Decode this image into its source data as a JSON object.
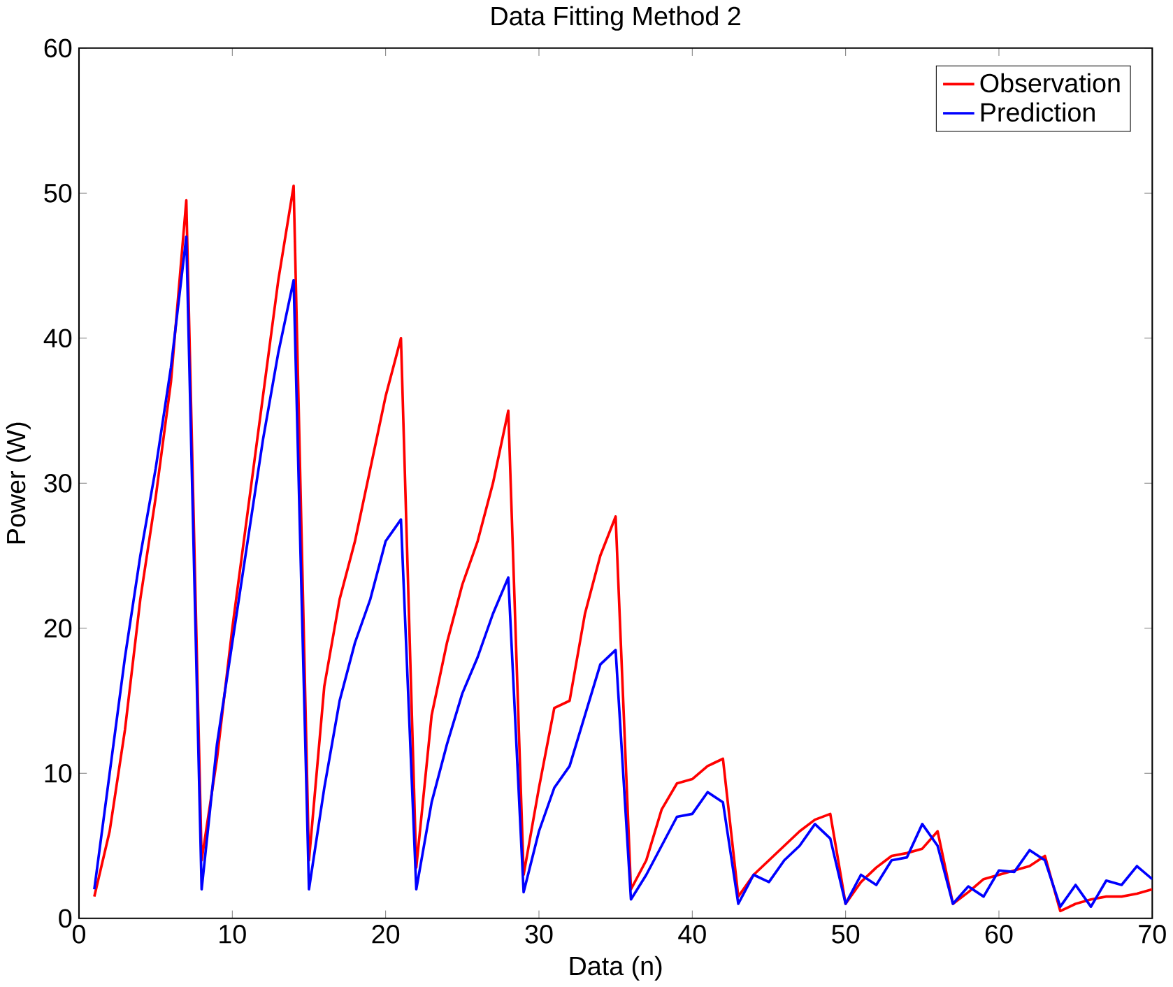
{
  "chart_data": {
    "type": "line",
    "title": "Data Fitting Method 2",
    "xlabel": "Data (n)",
    "ylabel": "Power (W)",
    "x": [
      1,
      2,
      3,
      4,
      5,
      6,
      7,
      8,
      9,
      10,
      11,
      12,
      13,
      14,
      15,
      16,
      17,
      18,
      19,
      20,
      21,
      22,
      23,
      24,
      25,
      26,
      27,
      28,
      29,
      30,
      31,
      32,
      33,
      34,
      35,
      36,
      37,
      38,
      39,
      40,
      41,
      42,
      43,
      44,
      45,
      46,
      47,
      48,
      49,
      50,
      51,
      52,
      53,
      54,
      55,
      56,
      57,
      58,
      59,
      60,
      61,
      62,
      63,
      64,
      65,
      66,
      67,
      68,
      69,
      70
    ],
    "series": [
      {
        "name": "Observation",
        "color": "#ff0000",
        "values": [
          1.5,
          6,
          13,
          22,
          29,
          37,
          49.5,
          4,
          11,
          20,
          28,
          36,
          44,
          50.5,
          4,
          16,
          22,
          26,
          31,
          36,
          40,
          3.5,
          14,
          19,
          23,
          26,
          30,
          35,
          3,
          9,
          14.5,
          15,
          21,
          25,
          27.7,
          2,
          4,
          7.5,
          9.3,
          9.6,
          10.5,
          11,
          1.5,
          3,
          4,
          5,
          6,
          6.8,
          7.2,
          1,
          2.5,
          3.5,
          4.3,
          4.5,
          4.8,
          6,
          1,
          1.8,
          2.7,
          3,
          3.3,
          3.6,
          4.3,
          0.5,
          1,
          1.3,
          1.5,
          1.5,
          1.7,
          2
        ]
      },
      {
        "name": "Prediction",
        "color": "#0000ff",
        "values": [
          2,
          10,
          18,
          25,
          31,
          38,
          47,
          2,
          12,
          19,
          26,
          33,
          39,
          44,
          2,
          9,
          15,
          19,
          22,
          26,
          27.5,
          2,
          8,
          12,
          15.5,
          18,
          21,
          23.5,
          1.8,
          6,
          9,
          10.5,
          14,
          17.5,
          18.5,
          1.3,
          3,
          5,
          7,
          7.2,
          8.7,
          8,
          1,
          3,
          2.5,
          4,
          5,
          6.5,
          5.5,
          1,
          3,
          2.3,
          4,
          4.2,
          6.5,
          5,
          1,
          2.2,
          1.5,
          3.3,
          3.2,
          4.7,
          4,
          0.8,
          2.3,
          0.8,
          2.6,
          2.3,
          3.6,
          2.7
        ]
      }
    ],
    "xlim": [
      0,
      70
    ],
    "ylim": [
      0,
      60
    ],
    "xticks": [
      0,
      10,
      20,
      30,
      40,
      50,
      60,
      70
    ],
    "yticks": [
      0,
      10,
      20,
      30,
      40,
      50,
      60
    ],
    "legend": "top right",
    "grid": false,
    "marker": "none",
    "line_style": "solid"
  }
}
